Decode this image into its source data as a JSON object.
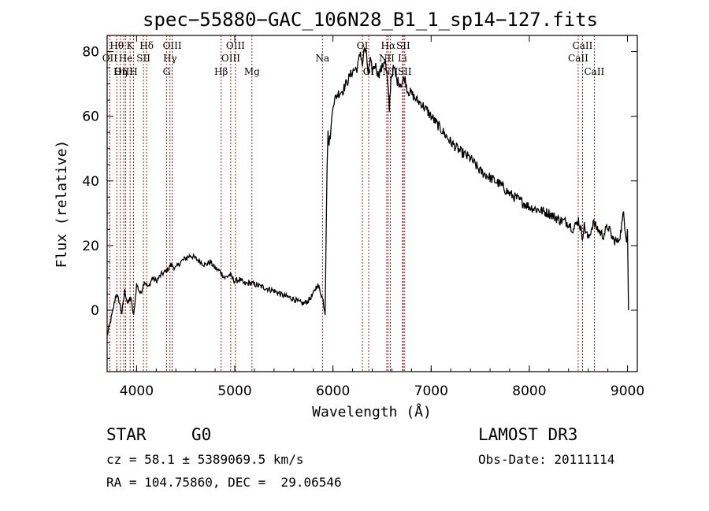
{
  "chart_data": {
    "type": "line",
    "title": "spec−55880−GAC_106N28_B1_1_sp14−127.fits",
    "xlabel": "Wavelength (Å)",
    "ylabel": "Flux (relative)",
    "xlim": [
      3700,
      9100
    ],
    "ylim": [
      -19,
      85
    ],
    "xticks": [
      4000,
      5000,
      6000,
      7000,
      8000,
      9000
    ],
    "yticks": [
      0,
      20,
      40,
      60,
      80
    ],
    "grid": false,
    "series": [
      {
        "name": "flux",
        "x": [
          3700,
          3730,
          3760,
          3790,
          3820,
          3850,
          3880,
          3910,
          3940,
          3970,
          4000,
          4040,
          4080,
          4120,
          4160,
          4200,
          4250,
          4300,
          4350,
          4400,
          4450,
          4500,
          4550,
          4600,
          4650,
          4700,
          4750,
          4800,
          4850,
          4900,
          4950,
          5000,
          5050,
          5100,
          5150,
          5200,
          5300,
          5400,
          5500,
          5600,
          5650,
          5700,
          5750,
          5800,
          5840,
          5870,
          5900,
          5920,
          5940,
          5950,
          5960,
          5980,
          6000,
          6050,
          6100,
          6150,
          6200,
          6250,
          6280,
          6300,
          6320,
          6340,
          6360,
          6380,
          6400,
          6430,
          6460,
          6500,
          6530,
          6560,
          6575,
          6590,
          6620,
          6650,
          6700,
          6730,
          6760,
          6800,
          6850,
          6900,
          6950,
          7000,
          7100,
          7200,
          7300,
          7400,
          7500,
          7600,
          7700,
          7800,
          7900,
          8000,
          8100,
          8200,
          8300,
          8400,
          8450,
          8500,
          8540,
          8560,
          8600,
          8650,
          8700,
          8750,
          8800,
          8850,
          8900,
          8930,
          8960,
          8990,
          9000,
          9010
        ],
        "y": [
          -8,
          -4,
          0,
          5,
          3,
          -1,
          6,
          2,
          4,
          -2,
          8,
          5,
          9,
          7,
          10,
          9,
          11,
          12,
          14,
          13,
          15,
          16,
          17,
          16,
          15,
          14,
          15,
          13,
          12,
          10,
          11,
          9,
          9.5,
          8,
          8.5,
          8,
          7,
          6,
          4.5,
          3.5,
          2.5,
          2,
          3,
          5,
          8,
          6,
          3,
          -1,
          45,
          55,
          51,
          56,
          64,
          67,
          68,
          71,
          74,
          75,
          80,
          76,
          81,
          79,
          73,
          77,
          74,
          76,
          73,
          75,
          78,
          69,
          62,
          72,
          75,
          71,
          70,
          72,
          68,
          67,
          65,
          64,
          62,
          60,
          56,
          52,
          49,
          47,
          43,
          41,
          39,
          36,
          34,
          32,
          31,
          30,
          28,
          27,
          25,
          28,
          23,
          26,
          22,
          27,
          25,
          23,
          26,
          22,
          21,
          24,
          30,
          22,
          25,
          0
        ]
      }
    ],
    "annotation_lines": [
      {
        "label": "Hθ",
        "x": 3798,
        "row": 0
      },
      {
        "label": "OII",
        "x": 3727,
        "row": 1
      },
      {
        "label": "OIII",
        "x": 3869,
        "row": 2
      },
      {
        "label": "He",
        "x": 3889,
        "row": 1
      },
      {
        "label": "K",
        "x": 3934,
        "row": 0
      },
      {
        "label": "Hη",
        "x": 3835,
        "row": 2
      },
      {
        "label": "SII",
        "x": 4070,
        "row": 1
      },
      {
        "label": "H",
        "x": 3969,
        "row": 2
      },
      {
        "label": "Hδ",
        "x": 4102,
        "row": 0
      },
      {
        "label": "OIII",
        "x": 4363,
        "row": 0
      },
      {
        "label": "Hγ",
        "x": 4340,
        "row": 1
      },
      {
        "label": "G",
        "x": 4305,
        "row": 2
      },
      {
        "label": "OIII",
        "x": 5007,
        "row": 0
      },
      {
        "label": "OIII",
        "x": 4959,
        "row": 1
      },
      {
        "label": "Hβ",
        "x": 4861,
        "row": 2
      },
      {
        "label": "Mg",
        "x": 5175,
        "row": 2
      },
      {
        "label": "Na",
        "x": 5893,
        "row": 1
      },
      {
        "label": "OI",
        "x": 6300,
        "row": 0
      },
      {
        "label": "OI",
        "x": 6364,
        "row": 2
      },
      {
        "label": "Hα",
        "x": 6563,
        "row": 0
      },
      {
        "label": "SII",
        "x": 6716,
        "row": 0
      },
      {
        "label": "NII",
        "x": 6548,
        "row": 1
      },
      {
        "label": "Li",
        "x": 6708,
        "row": 1
      },
      {
        "label": "NII",
        "x": 6584,
        "row": 2
      },
      {
        "label": "SII",
        "x": 6731,
        "row": 2
      },
      {
        "label": "CaII",
        "x": 8542,
        "row": 0
      },
      {
        "label": "CaII",
        "x": 8498,
        "row": 1
      },
      {
        "label": "CaII",
        "x": 8662,
        "row": 2
      }
    ]
  },
  "info": {
    "object_class": "STAR",
    "subclass": "G0",
    "survey": "LAMOST DR3",
    "cz_line": "cz = 58.1 ± 5389069.5 km/s",
    "obs_date_line": "Obs-Date: 20111114",
    "coord_line": "RA = 104.75860, DEC =  29.06546"
  },
  "colors": {
    "spectrum": "#000000",
    "marker_lines": "#aa0000",
    "axes": "#000000"
  }
}
